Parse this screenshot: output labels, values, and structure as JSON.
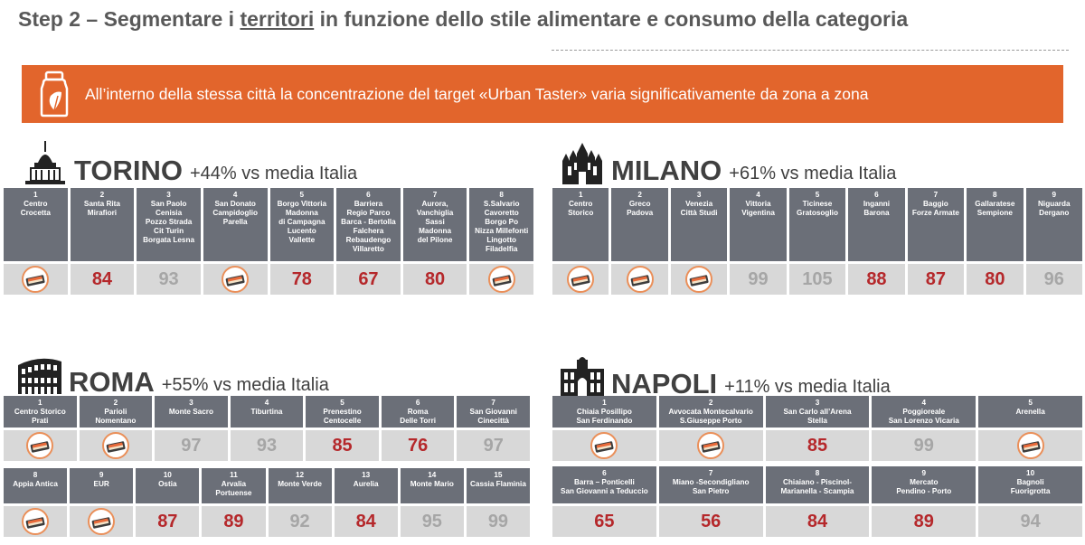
{
  "page": {
    "title_pre": "Step 2 – Segmentare i ",
    "title_ul": "territori",
    "title_post": " in funzione dello stile alimentare e consumo della categoria",
    "banner": "All’interno della stessa città la concentrazione del target «Urban Taster» varia significativamente da zona a zona"
  },
  "colors": {
    "accent": "#e2652c",
    "header_bg": "#6b6f78",
    "value_bg": "#d8d8d8",
    "high": "#b5282b",
    "low": "#a6a6a6",
    "ring": "#ea8f59"
  },
  "torino": {
    "name": "TORINO",
    "delta": "+44% vs media Italia",
    "zones": [
      {
        "n": "1",
        "lines": [
          "Centro",
          "Crocetta"
        ],
        "value": null,
        "type": "icon"
      },
      {
        "n": "2",
        "lines": [
          "Santa Rita",
          "Mirafiori"
        ],
        "value": "84",
        "type": "high"
      },
      {
        "n": "3",
        "lines": [
          "San Paolo",
          "Cenisia",
          "Pozzo Strada",
          "Cit Turin",
          "Borgata Lesna"
        ],
        "value": "93",
        "type": "low"
      },
      {
        "n": "4",
        "lines": [
          "San Donato",
          "Campidoglio",
          "Parella"
        ],
        "value": null,
        "type": "icon"
      },
      {
        "n": "5",
        "lines": [
          "Borgo Vittoria",
          "Madonna",
          "di Campagna",
          "Lucento",
          "Vallette"
        ],
        "value": "78",
        "type": "high"
      },
      {
        "n": "6",
        "lines": [
          "Barriera",
          "Regio Parco",
          "Barca - Bertolla",
          "Falchera",
          "Rebaudengo",
          "Villaretto"
        ],
        "value": "67",
        "type": "high"
      },
      {
        "n": "7",
        "lines": [
          "Aurora,",
          "Vanchiglia",
          "Sassi",
          "Madonna",
          "del Pilone"
        ],
        "value": "80",
        "type": "high"
      },
      {
        "n": "8",
        "lines": [
          "S.Salvario",
          "Cavoretto",
          "Borgo Po",
          "Nizza Millefonti",
          "Lingotto",
          "Filadelfia"
        ],
        "value": null,
        "type": "icon"
      }
    ]
  },
  "milano": {
    "name": "MILANO",
    "delta": "+61% vs media Italia",
    "zones": [
      {
        "n": "1",
        "lines": [
          "Centro",
          "Storico"
        ],
        "value": null,
        "type": "icon"
      },
      {
        "n": "2",
        "lines": [
          "Greco",
          "Padova"
        ],
        "value": null,
        "type": "icon"
      },
      {
        "n": "3",
        "lines": [
          "Venezia",
          "Città Studi"
        ],
        "value": null,
        "type": "icon"
      },
      {
        "n": "4",
        "lines": [
          "Vittoria",
          "Vigentina"
        ],
        "value": "99",
        "type": "low"
      },
      {
        "n": "5",
        "lines": [
          "Ticinese",
          "Gratosoglio"
        ],
        "value": "105",
        "type": "low"
      },
      {
        "n": "6",
        "lines": [
          "Inganni",
          "Barona"
        ],
        "value": "88",
        "type": "high"
      },
      {
        "n": "7",
        "lines": [
          "Baggio",
          "Forze Armate"
        ],
        "value": "87",
        "type": "high"
      },
      {
        "n": "8",
        "lines": [
          "Gallaratese",
          "Sempione"
        ],
        "value": "80",
        "type": "high"
      },
      {
        "n": "9",
        "lines": [
          "Niguarda",
          "Dergano"
        ],
        "value": "96",
        "type": "low"
      }
    ]
  },
  "roma": {
    "name": "ROMA",
    "delta": "+55% vs media Italia",
    "row1": [
      {
        "n": "1",
        "lines": [
          "Centro Storico",
          "Prati"
        ],
        "value": null,
        "type": "icon"
      },
      {
        "n": "2",
        "lines": [
          "Parioli",
          "Nomentano"
        ],
        "value": null,
        "type": "icon"
      },
      {
        "n": "3",
        "lines": [
          "Monte Sacro"
        ],
        "value": "97",
        "type": "low"
      },
      {
        "n": "4",
        "lines": [
          "Tiburtina"
        ],
        "value": "93",
        "type": "low"
      },
      {
        "n": "5",
        "lines": [
          "Prenestino",
          "Centocelle"
        ],
        "value": "85",
        "type": "high"
      },
      {
        "n": "6",
        "lines": [
          "Roma",
          "Delle Torri"
        ],
        "value": "76",
        "type": "high"
      },
      {
        "n": "7",
        "lines": [
          "San Giovanni",
          "Cinecittà"
        ],
        "value": "97",
        "type": "low"
      }
    ],
    "row2": [
      {
        "n": "8",
        "lines": [
          "Appia Antica"
        ],
        "value": null,
        "type": "icon"
      },
      {
        "n": "9",
        "lines": [
          "EUR"
        ],
        "value": null,
        "type": "icon"
      },
      {
        "n": "10",
        "lines": [
          "Ostia"
        ],
        "value": "87",
        "type": "high"
      },
      {
        "n": "11",
        "lines": [
          "Arvalia",
          "Portuense"
        ],
        "value": "89",
        "type": "high"
      },
      {
        "n": "12",
        "lines": [
          "Monte Verde"
        ],
        "value": "92",
        "type": "low"
      },
      {
        "n": "13",
        "lines": [
          "Aurelia"
        ],
        "value": "84",
        "type": "high"
      },
      {
        "n": "14",
        "lines": [
          "Monte Mario"
        ],
        "value": "95",
        "type": "low"
      },
      {
        "n": "15",
        "lines": [
          "Cassia Flaminia"
        ],
        "value": "99",
        "type": "low"
      }
    ]
  },
  "napoli": {
    "name": "NAPOLI",
    "delta": "+11% vs media Italia",
    "row1": [
      {
        "n": "1",
        "lines": [
          "Chiaia Posillipo",
          "San Ferdinando"
        ],
        "value": null,
        "type": "icon"
      },
      {
        "n": "2",
        "lines": [
          "Avvocata Montecalvario",
          "S.Giuseppe Porto"
        ],
        "value": null,
        "type": "icon"
      },
      {
        "n": "3",
        "lines": [
          "San Carlo all’Arena",
          "Stella"
        ],
        "value": "85",
        "type": "high"
      },
      {
        "n": "4",
        "lines": [
          "Poggioreale",
          "San Lorenzo Vicaria"
        ],
        "value": "99",
        "type": "low"
      },
      {
        "n": "5",
        "lines": [
          "Arenella"
        ],
        "value": null,
        "type": "icon"
      }
    ],
    "row2": [
      {
        "n": "6",
        "lines": [
          "Barra – Ponticelli",
          "San Giovanni a Teduccio"
        ],
        "value": "65",
        "type": "high"
      },
      {
        "n": "7",
        "lines": [
          "Miano -Secondigliano",
          "San Pietro"
        ],
        "value": "56",
        "type": "high"
      },
      {
        "n": "8",
        "lines": [
          "Chiaiano - Piscinol-",
          "Marianella - Scampia"
        ],
        "value": "84",
        "type": "high"
      },
      {
        "n": "9",
        "lines": [
          "Mercato",
          "Pendino - Porto"
        ],
        "value": "89",
        "type": "high"
      },
      {
        "n": "10",
        "lines": [
          "Bagnoli",
          "Fuorigrotta"
        ],
        "value": "94",
        "type": "low"
      }
    ]
  }
}
